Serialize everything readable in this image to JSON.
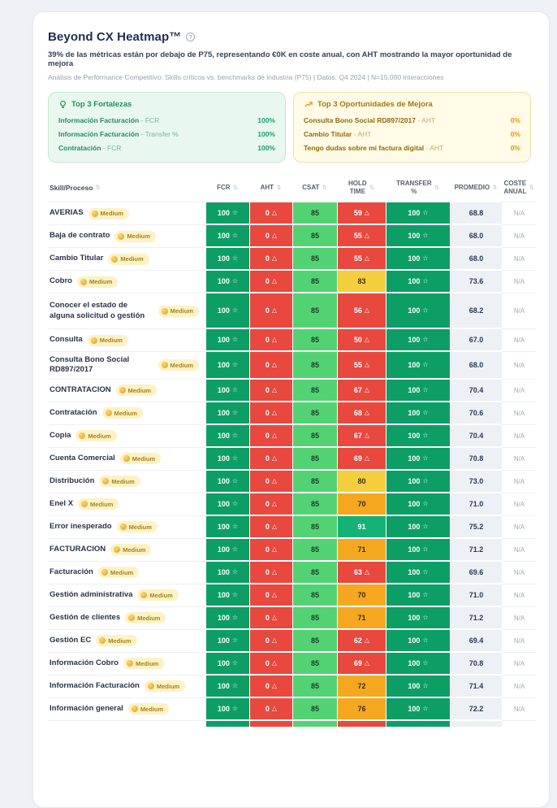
{
  "colors": {
    "page_bg": "#eef1f5",
    "title_color": "#1f2d4e",
    "meta": "#97a0ae",
    "green_dark": "#0d9e66",
    "red": "#e9483f",
    "light_green": "#53d274",
    "mid_green": "#15b277",
    "yellow": "#f5ce3e",
    "orange": "#f5a81f",
    "neutral_cell": "#edf0f5",
    "badge_bg": "#fcf2c5",
    "badge_text": "#a5821c",
    "strength_bg": "#e9f8ef",
    "strength_border": "#c3e9cf",
    "strength_title": "#1d9058",
    "strength_value": "#0fa36a",
    "opp_bg": "#fffbe7",
    "opp_border": "#f1e1a4",
    "opp_title": "#a4770f",
    "opp_value": "#e8940f"
  },
  "icons": {
    "help": "?",
    "star": "☆",
    "warning": "△",
    "sort": "⇅"
  },
  "header": {
    "title": "Beyond CX Heatmap™",
    "subtitle": "39% de las métricas están por debajo de P75, representando €0K en coste anual, con AHT mostrando la mayor oportunidad de mejora",
    "meta": "Análisis de Performance Competitivo: Skills críticos vs. benchmarks de industria (P75) | Datos: Q4 2024 | N=15,000 interacciones"
  },
  "cards": {
    "strengths": {
      "title": "Top 3 Fortalezas",
      "items": [
        {
          "skill": "Información Facturación",
          "metric": "FCR",
          "value": "100%"
        },
        {
          "skill": "Información Facturación",
          "metric": "Transfer %",
          "value": "100%"
        },
        {
          "skill": "Contratación",
          "metric": "FCR",
          "value": "100%"
        }
      ]
    },
    "opportunities": {
      "title": "Top 3 Oportunidades de Mejora",
      "items": [
        {
          "skill": "Consulta Bono Social RD897/2017",
          "metric": "AHT",
          "value": "0%"
        },
        {
          "skill": "Cambio Titular",
          "metric": "AHT",
          "value": "0%"
        },
        {
          "skill": "Tengo dudas sobre mi factura digital",
          "metric": "AHT",
          "value": "0%"
        }
      ]
    }
  },
  "table": {
    "columns": [
      {
        "key": "skill",
        "label": "Skill/Proceso"
      },
      {
        "key": "fcr",
        "label": "FCR"
      },
      {
        "key": "aht",
        "label": "AHT"
      },
      {
        "key": "csat",
        "label": "CSAT"
      },
      {
        "key": "hold",
        "label": "HOLD\nTIME"
      },
      {
        "key": "transfer",
        "label": "TRANSFER\n%"
      },
      {
        "key": "promedio",
        "label": "PROMEDIO"
      },
      {
        "key": "coste",
        "label": "COSTE\nANUAL"
      }
    ],
    "badge_label": "Medium",
    "rows": [
      {
        "skill": "AVERIAS",
        "fcr": "100",
        "aht": "0",
        "csat": "85",
        "hold": "59",
        "hold_tone": "red",
        "transfer": "100",
        "promedio": "68.8",
        "coste": "N/A"
      },
      {
        "skill": "Baja de contrato",
        "fcr": "100",
        "aht": "0",
        "csat": "85",
        "hold": "55",
        "hold_tone": "red",
        "transfer": "100",
        "promedio": "68.0",
        "coste": "N/A"
      },
      {
        "skill": "Cambio Titular",
        "fcr": "100",
        "aht": "0",
        "csat": "85",
        "hold": "55",
        "hold_tone": "red",
        "transfer": "100",
        "promedio": "68.0",
        "coste": "N/A"
      },
      {
        "skill": "Cobro",
        "fcr": "100",
        "aht": "0",
        "csat": "85",
        "hold": "83",
        "hold_tone": "yellow",
        "transfer": "100",
        "promedio": "73.6",
        "coste": "N/A"
      },
      {
        "skill": "Conocer el estado de alguna solicitud o gestión",
        "tall": true,
        "fcr": "100",
        "aht": "0",
        "csat": "85",
        "hold": "56",
        "hold_tone": "red",
        "transfer": "100",
        "promedio": "68.2",
        "coste": "N/A"
      },
      {
        "skill": "Consulta",
        "fcr": "100",
        "aht": "0",
        "csat": "85",
        "hold": "50",
        "hold_tone": "red",
        "transfer": "100",
        "promedio": "67.0",
        "coste": "N/A"
      },
      {
        "skill": "Consulta Bono Social RD897/2017",
        "fcr": "100",
        "aht": "0",
        "csat": "85",
        "hold": "55",
        "hold_tone": "red",
        "transfer": "100",
        "promedio": "68.0",
        "coste": "N/A"
      },
      {
        "skill": "CONTRATACION",
        "fcr": "100",
        "aht": "0",
        "csat": "85",
        "hold": "67",
        "hold_tone": "red",
        "transfer": "100",
        "promedio": "70.4",
        "coste": "N/A"
      },
      {
        "skill": "Contratación",
        "fcr": "100",
        "aht": "0",
        "csat": "85",
        "hold": "68",
        "hold_tone": "red",
        "transfer": "100",
        "promedio": "70.6",
        "coste": "N/A"
      },
      {
        "skill": "Copia",
        "fcr": "100",
        "aht": "0",
        "csat": "85",
        "hold": "67",
        "hold_tone": "red",
        "transfer": "100",
        "promedio": "70.4",
        "coste": "N/A"
      },
      {
        "skill": "Cuenta Comercial",
        "fcr": "100",
        "aht": "0",
        "csat": "85",
        "hold": "69",
        "hold_tone": "red",
        "transfer": "100",
        "promedio": "70.8",
        "coste": "N/A"
      },
      {
        "skill": "Distribución",
        "fcr": "100",
        "aht": "0",
        "csat": "85",
        "hold": "80",
        "hold_tone": "yellow",
        "transfer": "100",
        "promedio": "73.0",
        "coste": "N/A"
      },
      {
        "skill": "Enel X",
        "fcr": "100",
        "aht": "0",
        "csat": "85",
        "hold": "70",
        "hold_tone": "orange",
        "transfer": "100",
        "promedio": "71.0",
        "coste": "N/A"
      },
      {
        "skill": "Error inesperado",
        "fcr": "100",
        "aht": "0",
        "csat": "85",
        "hold": "91",
        "hold_tone": "midgreen",
        "transfer": "100",
        "promedio": "75.2",
        "coste": "N/A"
      },
      {
        "skill": "FACTURACION",
        "fcr": "100",
        "aht": "0",
        "csat": "85",
        "hold": "71",
        "hold_tone": "orange",
        "transfer": "100",
        "promedio": "71.2",
        "coste": "N/A"
      },
      {
        "skill": "Facturación",
        "fcr": "100",
        "aht": "0",
        "csat": "85",
        "hold": "63",
        "hold_tone": "red",
        "transfer": "100",
        "promedio": "69.6",
        "coste": "N/A"
      },
      {
        "skill": "Gestión administrativa",
        "fcr": "100",
        "aht": "0",
        "csat": "85",
        "hold": "70",
        "hold_tone": "orange",
        "transfer": "100",
        "promedio": "71.0",
        "coste": "N/A"
      },
      {
        "skill": "Gestión de clientes",
        "fcr": "100",
        "aht": "0",
        "csat": "85",
        "hold": "71",
        "hold_tone": "orange",
        "transfer": "100",
        "promedio": "71.2",
        "coste": "N/A"
      },
      {
        "skill": "Gestión EC",
        "fcr": "100",
        "aht": "0",
        "csat": "85",
        "hold": "62",
        "hold_tone": "red",
        "transfer": "100",
        "promedio": "69.4",
        "coste": "N/A"
      },
      {
        "skill": "Información Cobro",
        "fcr": "100",
        "aht": "0",
        "csat": "85",
        "hold": "69",
        "hold_tone": "red",
        "transfer": "100",
        "promedio": "70.8",
        "coste": "N/A"
      },
      {
        "skill": "Información Facturación",
        "fcr": "100",
        "aht": "0",
        "csat": "85",
        "hold": "72",
        "hold_tone": "orange",
        "transfer": "100",
        "promedio": "71.4",
        "coste": "N/A"
      },
      {
        "skill": "Información general",
        "fcr": "100",
        "aht": "0",
        "csat": "85",
        "hold": "76",
        "hold_tone": "orange",
        "transfer": "100",
        "promedio": "72.2",
        "coste": "N/A"
      }
    ],
    "partial_strip": [
      "green",
      "red",
      "lightgreen",
      "red",
      "green",
      "neutral"
    ]
  }
}
